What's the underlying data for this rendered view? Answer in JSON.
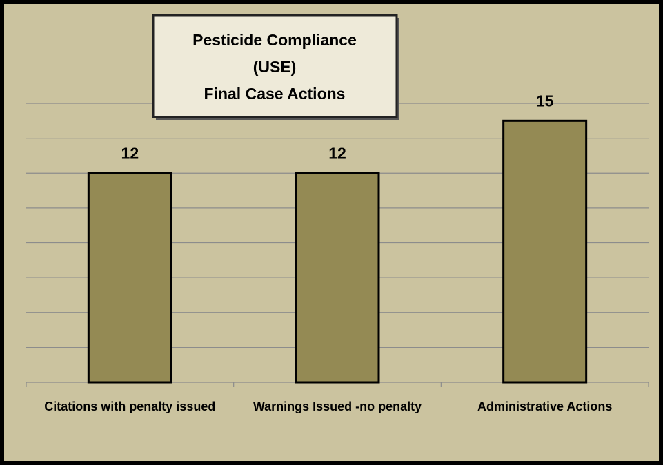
{
  "chart_data": {
    "type": "bar",
    "title": [
      "Pesticide Compliance",
      "(USE)",
      "Final Case Actions"
    ],
    "categories": [
      "Citations with penalty issued",
      "Warnings Issued -no penalty",
      "Administrative Actions"
    ],
    "values": [
      12,
      12,
      15
    ],
    "color": "#948a54",
    "ylim": [
      0,
      16
    ],
    "yticks": [
      0,
      2,
      4,
      6,
      8,
      10,
      12,
      14,
      16
    ],
    "grid": true
  }
}
